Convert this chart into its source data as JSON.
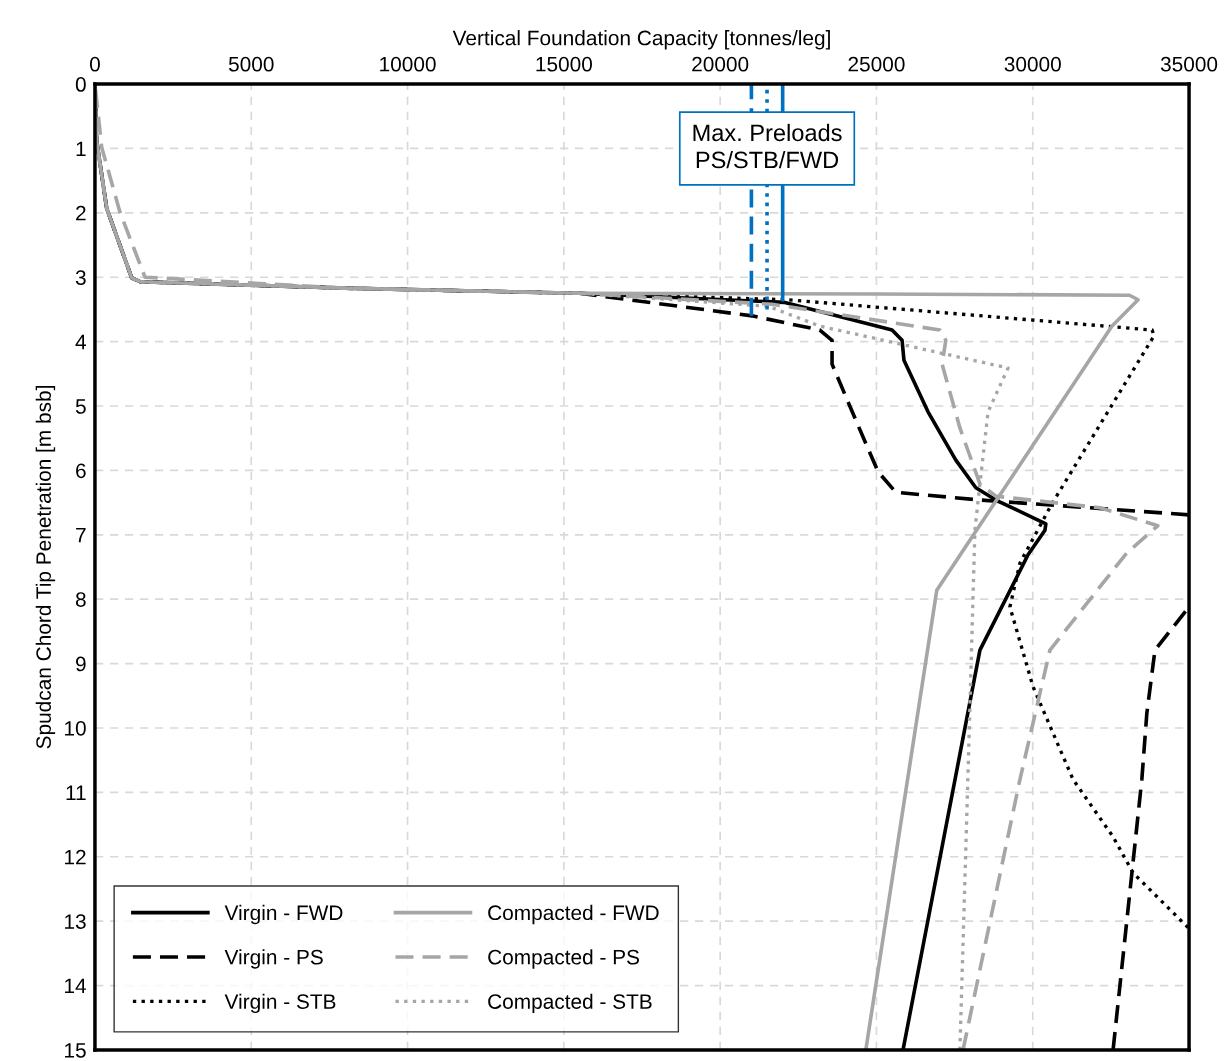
{
  "chart_data": {
    "type": "line",
    "xlabel": "Vertical Foundation Capacity [tonnes/leg]",
    "ylabel": "Spudcan Chord Tip Penetration [m bsb]",
    "xlim": [
      0,
      35000
    ],
    "xticks": [
      0,
      5000,
      10000,
      15000,
      20000,
      25000,
      30000,
      35000
    ],
    "ylim": [
      15,
      0
    ],
    "yticks": [
      0,
      1,
      2,
      3,
      4,
      5,
      6,
      7,
      8,
      9,
      10,
      11,
      12,
      13,
      14,
      15
    ],
    "grid": true,
    "legend": "bottom left",
    "marker": "none",
    "annotations": [
      {
        "text": "Max. Preloads\nPS/STB/FWD",
        "x": 21500,
        "y": 1.0
      }
    ],
    "series": [
      {
        "name": "Virgin - FWD",
        "color": "#000000",
        "line_style": "solid",
        "x": [
          0,
          50,
          375,
          1175,
          1440,
          8000,
          15500,
          22040,
          25500,
          25820,
          25880,
          26650,
          27540,
          28180,
          28820,
          30420,
          30390,
          29850,
          28310,
          25850
        ],
        "values": [
          0,
          0.87,
          1.93,
          3.01,
          3.07,
          3.17,
          3.25,
          3.39,
          3.82,
          3.98,
          4.29,
          5.09,
          5.84,
          6.27,
          6.46,
          6.83,
          6.93,
          7.31,
          8.79,
          15.0
        ]
      },
      {
        "name": "Virgin - PS",
        "color": "#000000",
        "line_style": "dashed",
        "x": [
          0,
          50,
          375,
          1175,
          1440,
          8000,
          15500,
          21020,
          23190,
          23580,
          23580,
          24340,
          25050,
          25620,
          28310,
          35000
        ],
        "values": [
          0,
          0.87,
          1.93,
          3.01,
          3.07,
          3.17,
          3.25,
          3.6,
          3.82,
          3.98,
          4.35,
          5.22,
          6.02,
          6.34,
          6.46,
          6.69
        ]
      },
      {
        "name": "Virgin - STB",
        "color": "#000000",
        "line_style": "dotted",
        "x": [
          0,
          50,
          375,
          1175,
          1440,
          8000,
          15500,
          22170,
          33820,
          33880,
          30610,
          29590,
          29270,
          30010,
          31290,
          32570,
          33210,
          34970
        ],
        "values": [
          0,
          0.87,
          1.93,
          3.01,
          3.07,
          3.17,
          3.25,
          3.35,
          3.82,
          3.91,
          6.52,
          7.44,
          8.12,
          9.36,
          10.8,
          11.69,
          12.25,
          13.1
        ]
      },
      {
        "name": "Compacted - FWD",
        "color": "#a6a6a6",
        "line_style": "solid",
        "x": [
          0,
          50,
          375,
          1175,
          1440,
          8000,
          15500,
          25000,
          33100,
          33370,
          32530,
          26930,
          24660
        ],
        "values": [
          0,
          0.87,
          1.93,
          3.01,
          3.07,
          3.17,
          3.25,
          3.26,
          3.28,
          3.35,
          3.76,
          7.86,
          15.0
        ]
      },
      {
        "name": "Compacted - PS",
        "color": "#a6a6a6",
        "line_style": "dashed",
        "x": [
          0,
          215,
          800,
          1600,
          8000,
          15500,
          21660,
          27030,
          27220,
          27100,
          27670,
          28310,
          28820,
          32150,
          34000,
          33010,
          30550,
          30230,
          29590,
          27770
        ],
        "values": [
          0,
          0.98,
          1.99,
          3.0,
          3.17,
          3.25,
          3.42,
          3.82,
          3.98,
          4.35,
          5.34,
          6.21,
          6.4,
          6.58,
          6.86,
          7.28,
          8.79,
          9.46,
          10.8,
          15.0
        ]
      },
      {
        "name": "Compacted - STB",
        "color": "#a6a6a6",
        "line_style": "dotted",
        "x": [
          0,
          50,
          375,
          1175,
          1440,
          8000,
          15500,
          21530,
          23190,
          29210,
          28570,
          28310,
          28150,
          27930,
          27670
        ],
        "values": [
          0,
          0.87,
          1.93,
          3.01,
          3.07,
          3.17,
          3.25,
          3.45,
          3.76,
          4.41,
          5.09,
          6.21,
          6.93,
          10.7,
          15.0
        ]
      },
      {
        "color": "#000000",
        "line_style": "dashed",
        "x": [
          35000,
          33910,
          33650,
          33490,
          32570
        ],
        "values": [
          8.12,
          8.79,
          9.77,
          10.8,
          15.0
        ]
      },
      {
        "color": "#0070c0",
        "line_style": "dashed",
        "x": [
          21000,
          21000
        ],
        "values": [
          0,
          3.6
        ]
      },
      {
        "color": "#0070c0",
        "line_style": "dotted",
        "x": [
          21500,
          21500
        ],
        "values": [
          0,
          3.5
        ]
      },
      {
        "color": "#0070c0",
        "line_style": "solid",
        "x": [
          22000,
          22000
        ],
        "values": [
          0,
          3.35
        ]
      }
    ]
  }
}
